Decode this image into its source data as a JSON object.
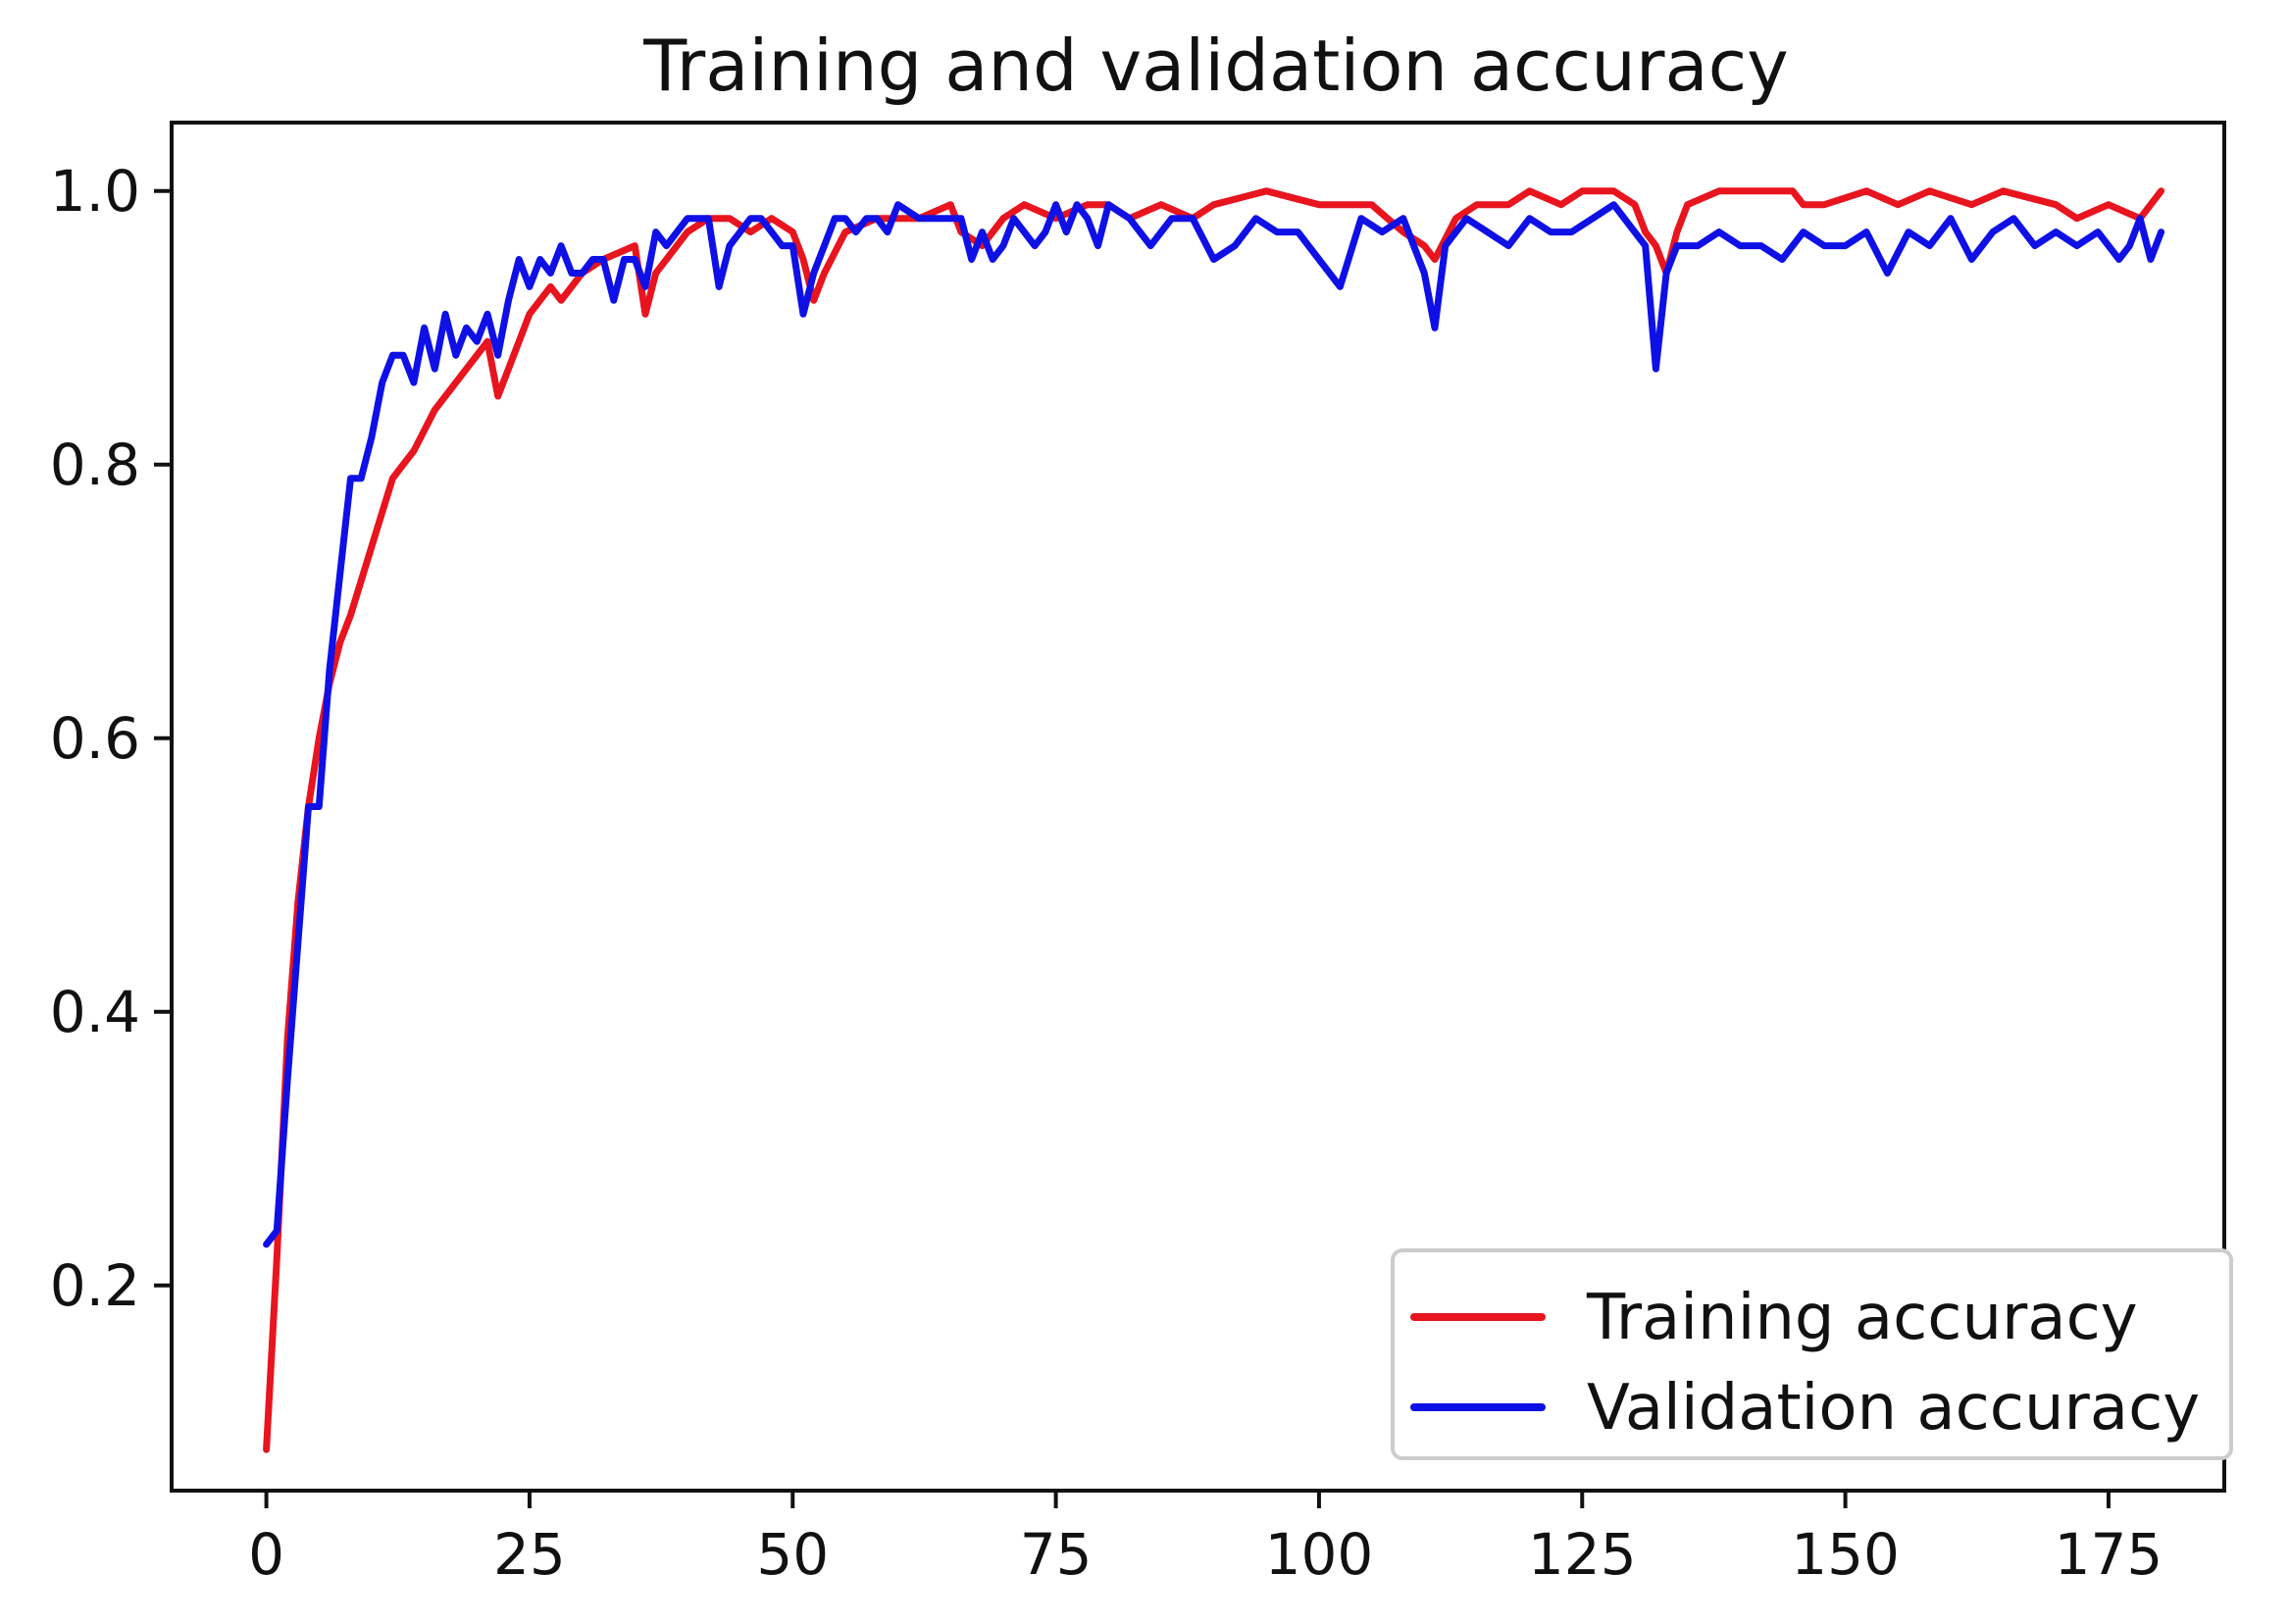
{
  "chart_data": {
    "type": "line",
    "title": "Training and validation accuracy",
    "xlabel": "",
    "ylabel": "",
    "xlim": [
      -9,
      186
    ],
    "ylim": [
      0.05,
      1.05
    ],
    "xticks": [
      0,
      25,
      50,
      75,
      100,
      125,
      150,
      175
    ],
    "xtick_labels": [
      "0",
      "25",
      "50",
      "75",
      "100",
      "125",
      "150",
      "175"
    ],
    "yticks": [
      0.2,
      0.4,
      0.6,
      0.8,
      1.0
    ],
    "ytick_labels": [
      "0.2",
      "0.4",
      "0.6",
      "0.8",
      "1.0"
    ],
    "grid": false,
    "legend_position": "lower-right",
    "series": [
      {
        "name": "Training accuracy",
        "color": "#e8141e",
        "x": [
          0,
          1,
          2,
          3,
          4,
          5,
          6,
          7,
          8,
          10,
          12,
          13,
          14,
          16,
          18,
          20,
          21,
          22,
          23,
          25,
          27,
          28,
          30,
          32,
          35,
          36,
          37,
          38,
          40,
          42,
          44,
          46,
          48,
          50,
          51,
          52,
          53,
          55,
          58,
          62,
          65,
          66,
          68,
          70,
          72,
          75,
          78,
          80,
          82,
          85,
          88,
          90,
          95,
          100,
          105,
          108,
          110,
          111,
          113,
          115,
          118,
          120,
          123,
          125,
          128,
          130,
          131,
          132,
          133,
          134,
          135,
          138,
          142,
          145,
          146,
          148,
          152,
          155,
          158,
          162,
          165,
          170,
          172,
          175,
          178,
          180
        ],
        "y": [
          0.08,
          0.22,
          0.38,
          0.48,
          0.55,
          0.6,
          0.64,
          0.67,
          0.69,
          0.74,
          0.79,
          0.8,
          0.81,
          0.84,
          0.86,
          0.88,
          0.89,
          0.85,
          0.87,
          0.91,
          0.93,
          0.92,
          0.94,
          0.95,
          0.96,
          0.91,
          0.94,
          0.95,
          0.97,
          0.98,
          0.98,
          0.97,
          0.98,
          0.97,
          0.95,
          0.92,
          0.94,
          0.97,
          0.98,
          0.98,
          0.99,
          0.97,
          0.96,
          0.98,
          0.99,
          0.98,
          0.99,
          0.99,
          0.98,
          0.99,
          0.98,
          0.99,
          1.0,
          0.99,
          0.99,
          0.97,
          0.96,
          0.95,
          0.98,
          0.99,
          0.99,
          1.0,
          0.99,
          1.0,
          1.0,
          0.99,
          0.97,
          0.96,
          0.94,
          0.97,
          0.99,
          1.0,
          1.0,
          1.0,
          0.99,
          0.99,
          1.0,
          0.99,
          1.0,
          0.99,
          1.0,
          0.99,
          0.98,
          0.99,
          0.98,
          1.0
        ]
      },
      {
        "name": "Validation accuracy",
        "color": "#0f10e6",
        "x": [
          0,
          1,
          2,
          3,
          4,
          5,
          6,
          7,
          8,
          9,
          10,
          11,
          12,
          13,
          14,
          15,
          16,
          17,
          18,
          19,
          20,
          21,
          22,
          23,
          24,
          25,
          26,
          27,
          28,
          29,
          30,
          31,
          32,
          33,
          34,
          35,
          36,
          37,
          38,
          39,
          40,
          41,
          42,
          43,
          44,
          45,
          46,
          47,
          48,
          49,
          50,
          51,
          52,
          53,
          54,
          55,
          56,
          57,
          58,
          59,
          60,
          62,
          64,
          66,
          67,
          68,
          69,
          70,
          71,
          72,
          73,
          74,
          75,
          76,
          77,
          78,
          79,
          80,
          82,
          84,
          86,
          88,
          90,
          92,
          94,
          96,
          98,
          100,
          102,
          104,
          106,
          108,
          110,
          111,
          112,
          114,
          116,
          118,
          120,
          122,
          124,
          126,
          128,
          130,
          131,
          132,
          133,
          134,
          136,
          138,
          140,
          142,
          144,
          146,
          148,
          150,
          152,
          154,
          156,
          158,
          160,
          162,
          164,
          166,
          168,
          170,
          172,
          174,
          176,
          177,
          178,
          179,
          180
        ],
        "y": [
          0.23,
          0.24,
          0.35,
          0.45,
          0.55,
          0.55,
          0.65,
          0.72,
          0.79,
          0.79,
          0.82,
          0.86,
          0.88,
          0.88,
          0.86,
          0.9,
          0.87,
          0.91,
          0.88,
          0.9,
          0.89,
          0.91,
          0.88,
          0.92,
          0.95,
          0.93,
          0.95,
          0.94,
          0.96,
          0.94,
          0.94,
          0.95,
          0.95,
          0.92,
          0.95,
          0.95,
          0.93,
          0.97,
          0.96,
          0.97,
          0.98,
          0.98,
          0.98,
          0.93,
          0.96,
          0.97,
          0.98,
          0.98,
          0.97,
          0.96,
          0.96,
          0.91,
          0.94,
          0.96,
          0.98,
          0.98,
          0.97,
          0.98,
          0.98,
          0.97,
          0.99,
          0.98,
          0.98,
          0.98,
          0.95,
          0.97,
          0.95,
          0.96,
          0.98,
          0.97,
          0.96,
          0.97,
          0.99,
          0.97,
          0.99,
          0.98,
          0.96,
          0.99,
          0.98,
          0.96,
          0.98,
          0.98,
          0.95,
          0.96,
          0.98,
          0.97,
          0.97,
          0.95,
          0.93,
          0.98,
          0.97,
          0.98,
          0.94,
          0.9,
          0.96,
          0.98,
          0.97,
          0.96,
          0.98,
          0.97,
          0.97,
          0.98,
          0.99,
          0.97,
          0.96,
          0.87,
          0.94,
          0.96,
          0.96,
          0.97,
          0.96,
          0.96,
          0.95,
          0.97,
          0.96,
          0.96,
          0.97,
          0.94,
          0.97,
          0.96,
          0.98,
          0.95,
          0.97,
          0.98,
          0.96,
          0.97,
          0.96,
          0.97,
          0.95,
          0.96,
          0.98,
          0.95,
          0.97
        ]
      }
    ]
  }
}
